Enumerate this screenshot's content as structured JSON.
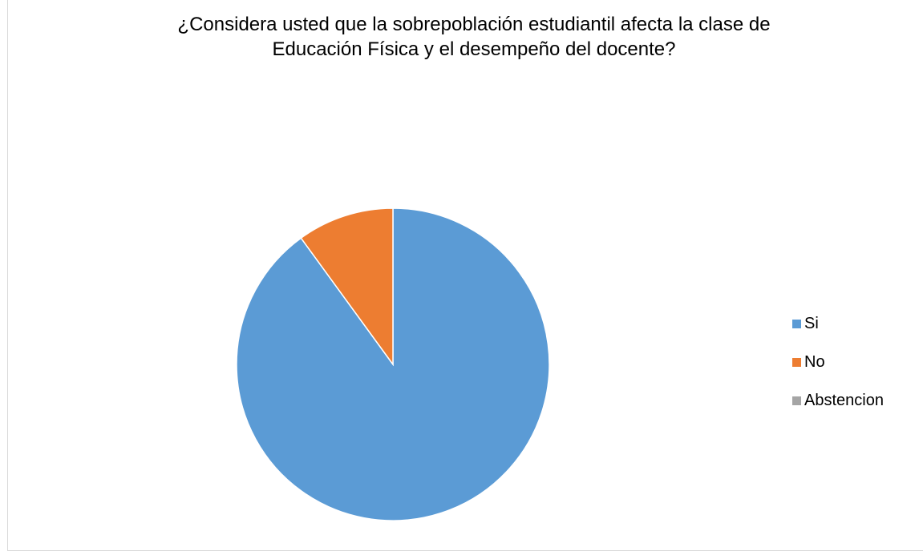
{
  "chart_data": {
    "type": "pie",
    "title_lines": [
      "¿Considera usted que la sobrepoblación estudiantil afecta la clase de",
      "Educación Física  y el desempeño del docente?"
    ],
    "categories": [
      "Si",
      "No",
      "Abstencion"
    ],
    "values": [
      90,
      10,
      0
    ],
    "colors": [
      "#5b9bd5",
      "#ed7d31",
      "#a5a5a5"
    ],
    "legend_position": "right",
    "start_angle": "top",
    "direction": "clockwise"
  }
}
